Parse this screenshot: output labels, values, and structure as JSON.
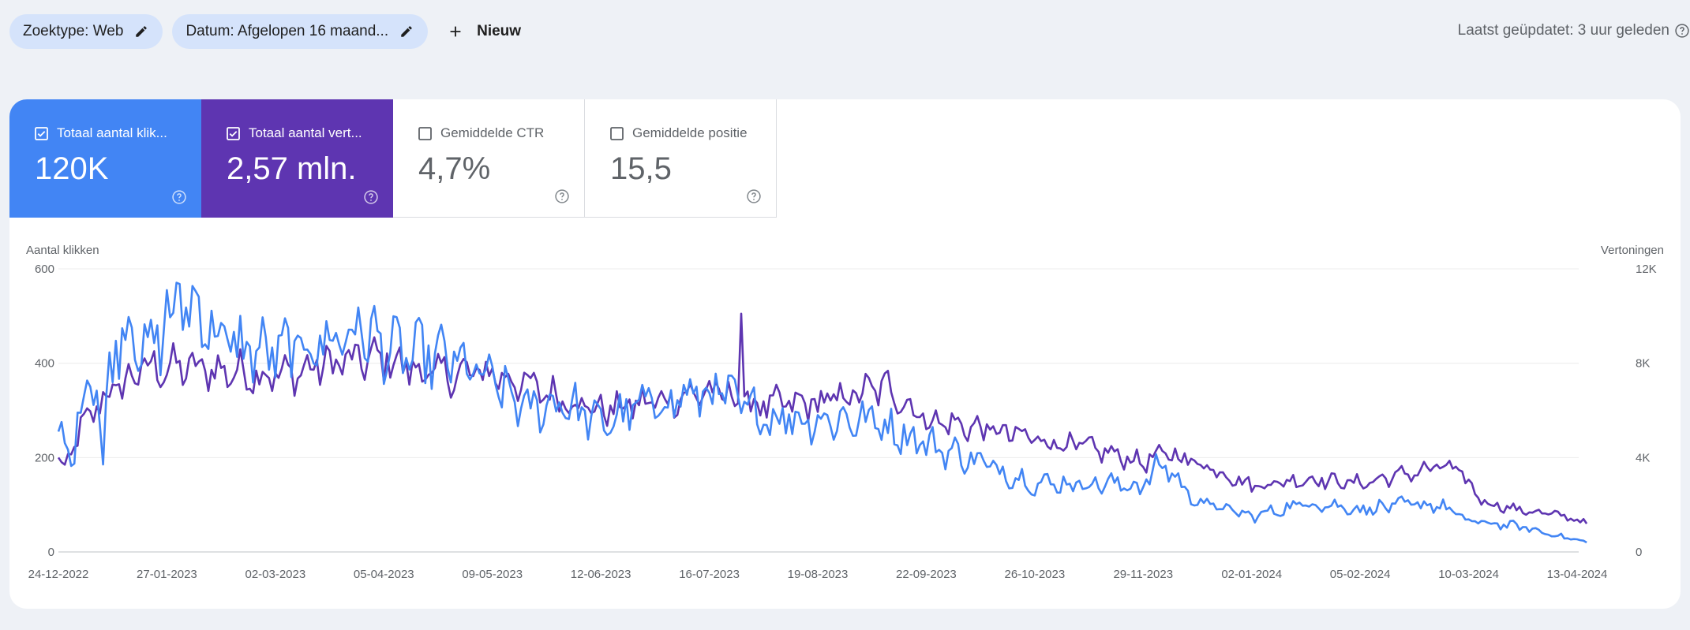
{
  "filters": {
    "search_type": "Zoektype: Web",
    "date": "Datum: Afgelopen 16 maand...",
    "new_label": "Nieuw"
  },
  "last_updated": "Laatst geüpdatet: 3 uur geleden",
  "metrics": {
    "clicks": {
      "label": "Totaal aantal klik...",
      "value": "120K",
      "checked": true,
      "color": "#4285f4"
    },
    "impressions": {
      "label": "Totaal aantal vert...",
      "value": "2,57 mln.",
      "checked": true,
      "color": "#5e35b1"
    },
    "ctr": {
      "label": "Gemiddelde CTR",
      "value": "4,7%",
      "checked": false
    },
    "position": {
      "label": "Gemiddelde positie",
      "value": "15,5",
      "checked": false
    }
  },
  "chart_data": {
    "type": "line",
    "ylabel_left": "Aantal klikken",
    "ylabel_right": "Vertoningen",
    "ylim_left": [
      0,
      600
    ],
    "ylim_right": [
      0,
      12000
    ],
    "yticks_left": [
      "0",
      "200",
      "400",
      "600"
    ],
    "yticks_right": [
      "0",
      "4K",
      "8K",
      "12K"
    ],
    "x_ticks": [
      "24-12-2022",
      "27-01-2023",
      "02-03-2023",
      "05-04-2023",
      "09-05-2023",
      "12-06-2023",
      "16-07-2023",
      "19-08-2023",
      "22-09-2023",
      "26-10-2023",
      "29-11-2023",
      "02-01-2024",
      "05-02-2024",
      "10-03-2024",
      "13-04-2024"
    ],
    "grid": true,
    "series": [
      {
        "axis": "left",
        "color": "#4285f4",
        "anchors": [
          [
            "24-12-2022",
            255
          ],
          [
            "28-12-2022",
            190
          ],
          [
            "01-01-2023",
            350
          ],
          [
            "05-01-2023",
            380
          ],
          [
            "07-01-2023",
            175
          ],
          [
            "09-01-2023",
            400
          ],
          [
            "14-01-2023",
            490
          ],
          [
            "22-01-2023",
            420
          ],
          [
            "02-02-2023",
            540
          ],
          [
            "15-02-2023",
            440
          ],
          [
            "01-03-2023",
            420
          ],
          [
            "15-03-2023",
            440
          ],
          [
            "28-03-2023",
            470
          ],
          [
            "10-04-2023",
            420
          ],
          [
            "25-04-2023",
            410
          ],
          [
            "09-05-2023",
            360
          ],
          [
            "20-05-2023",
            300
          ],
          [
            "31-05-2023",
            320
          ],
          [
            "12-06-2023",
            270
          ],
          [
            "25-06-2023",
            310
          ],
          [
            "10-07-2023",
            330
          ],
          [
            "18-07-2023",
            340
          ],
          [
            "01-08-2023",
            290
          ],
          [
            "19-08-2023",
            280
          ],
          [
            "05-09-2023",
            280
          ],
          [
            "22-09-2023",
            230
          ],
          [
            "05-10-2023",
            200
          ],
          [
            "26-10-2023",
            145
          ],
          [
            "15-11-2023",
            145
          ],
          [
            "29-11-2023",
            140
          ],
          [
            "05-12-2023",
            190
          ],
          [
            "15-12-2023",
            110
          ],
          [
            "02-01-2024",
            75
          ],
          [
            "20-01-2024",
            105
          ],
          [
            "05-02-2024",
            90
          ],
          [
            "20-02-2024",
            100
          ],
          [
            "01-03-2024",
            100
          ],
          [
            "10-03-2024",
            65
          ],
          [
            "25-03-2024",
            55
          ],
          [
            "13-04-2024",
            25
          ],
          [
            "16-04-2024",
            20
          ]
        ]
      },
      {
        "axis": "right",
        "color": "#5e35b1",
        "anchors": [
          [
            "24-12-2022",
            4000
          ],
          [
            "26-12-2022",
            3500
          ],
          [
            "31-12-2022",
            5200
          ],
          [
            "07-01-2023",
            6500
          ],
          [
            "20-01-2023",
            7800
          ],
          [
            "02-02-2023",
            7800
          ],
          [
            "20-02-2023",
            7600
          ],
          [
            "05-03-2023",
            7500
          ],
          [
            "20-03-2023",
            8000
          ],
          [
            "05-04-2023",
            8200
          ],
          [
            "20-04-2023",
            7500
          ],
          [
            "09-05-2023",
            7600
          ],
          [
            "25-05-2023",
            6800
          ],
          [
            "12-06-2023",
            6000
          ],
          [
            "30-06-2023",
            6400
          ],
          [
            "16-07-2023",
            6800
          ],
          [
            "01-08-2023",
            6200
          ],
          [
            "19-08-2023",
            6300
          ],
          [
            "10-09-2023",
            7000
          ],
          [
            "22-09-2023",
            5600
          ],
          [
            "10-10-2023",
            5200
          ],
          [
            "26-10-2023",
            4800
          ],
          [
            "15-11-2023",
            4300
          ],
          [
            "29-11-2023",
            3800
          ],
          [
            "07-12-2023",
            4200
          ],
          [
            "20-12-2023",
            3600
          ],
          [
            "02-01-2024",
            2800
          ],
          [
            "20-01-2024",
            3100
          ],
          [
            "05-02-2024",
            2900
          ],
          [
            "01-03-2024",
            3600
          ],
          [
            "06-03-2024",
            3500
          ],
          [
            "15-03-2024",
            2100
          ],
          [
            "25-03-2024",
            1800
          ],
          [
            "10-04-2024",
            1500
          ],
          [
            "16-04-2024",
            1200
          ]
        ]
      }
    ],
    "spikes": [
      {
        "axis": "right",
        "color": "#5e35b1",
        "date": "26-07-2023",
        "value": 10100
      },
      {
        "axis": "left",
        "color": "#4285f4",
        "date": "27-01-2023",
        "value": 555
      }
    ]
  }
}
